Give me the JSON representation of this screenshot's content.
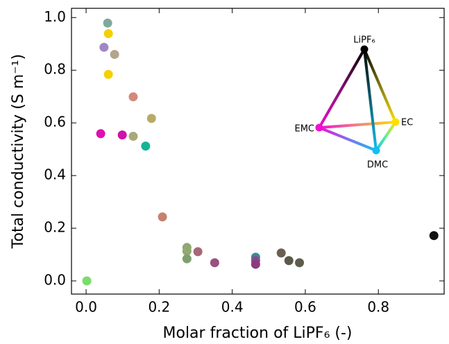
{
  "chart_data": {
    "type": "scatter",
    "xlabel": "Molar fraction of LiPF₆ (-)",
    "ylabel": "Total conductivity (S m⁻¹)",
    "x": [
      0.059,
      0.061,
      0.049,
      0.078,
      0.061,
      0.129,
      0.179,
      0.04,
      0.099,
      0.129,
      0.163,
      0.209,
      0.276,
      0.276,
      0.276,
      0.306,
      0.352,
      0.464,
      0.464,
      0.464,
      0.534,
      0.555,
      0.584,
      0.952,
      0.002
    ],
    "values": [
      0.979,
      0.939,
      0.887,
      0.86,
      0.784,
      0.699,
      0.617,
      0.559,
      0.554,
      0.549,
      0.512,
      0.243,
      0.127,
      0.113,
      0.084,
      0.111,
      0.069,
      0.09,
      0.077,
      0.063,
      0.106,
      0.077,
      0.069,
      0.172,
      0.0
    ],
    "colors": [
      "#80a89c",
      "#f5d000",
      "#a087c4",
      "#b3a58c",
      "#f5d000",
      "#d4887a",
      "#b8aa68",
      "#e010b0",
      "#d010a8",
      "#aaa878",
      "#17b394",
      "#c8806e",
      "#8fa870",
      "#92a872",
      "#7ea070",
      "#a56878",
      "#9a5080",
      "#3a8a98",
      "#8a4a8a",
      "#8a3a80",
      "#6a6050",
      "#5c584a",
      "#5e5c4c",
      "#111111",
      "#7adc6a"
    ],
    "xlim": [
      -0.04,
      0.98
    ],
    "ylim": [
      -0.05,
      1.035
    ],
    "xticks": [
      {
        "value": 0,
        "label": "0.0"
      },
      0.2,
      0.4,
      0.6,
      0.8
    ],
    "yticks": [
      {
        "value": 0,
        "label": "0.0"
      },
      0.2,
      0.4,
      0.6,
      0.8,
      {
        "value": 1,
        "label": "1.0"
      }
    ],
    "inset_labels": [
      "LiPF₆",
      "EC",
      "EMC",
      "DMC"
    ]
  }
}
